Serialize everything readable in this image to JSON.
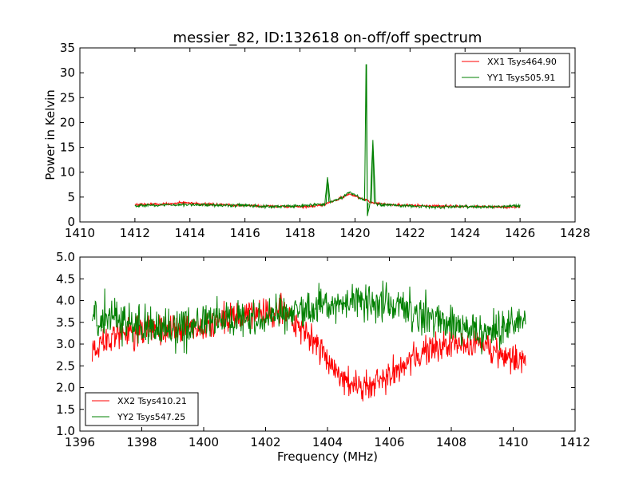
{
  "chart_data": [
    {
      "type": "line",
      "title": "messier_82, ID:132618 on-off/off spectrum",
      "xlabel": "",
      "ylabel": "Power in Kelvin",
      "xlim": [
        1410,
        1428
      ],
      "ylim": [
        0,
        35
      ],
      "xticks": [
        1410,
        1412,
        1414,
        1416,
        1418,
        1420,
        1422,
        1424,
        1426,
        1428
      ],
      "yticks": [
        0,
        5,
        10,
        15,
        20,
        25,
        30,
        35
      ],
      "legend_position": "top-right",
      "series": [
        {
          "name": "XX1 Tsys464.90",
          "color": "#ff0000",
          "points": [
            [
              1412,
              3.5
            ],
            [
              1413,
              3.6
            ],
            [
              1413.8,
              3.9
            ],
            [
              1414.5,
              3.6
            ],
            [
              1415.5,
              3.4
            ],
            [
              1416.5,
              3.2
            ],
            [
              1417.5,
              3.1
            ],
            [
              1418.2,
              3.0
            ],
            [
              1418.8,
              3.4
            ],
            [
              1419.3,
              4.3
            ],
            [
              1419.8,
              5.6
            ],
            [
              1420.1,
              5.0
            ],
            [
              1420.4,
              4.5
            ],
            [
              1420.6,
              3.9
            ],
            [
              1421,
              3.6
            ],
            [
              1422,
              3.3
            ],
            [
              1423,
              3.2
            ],
            [
              1424,
              3.1
            ],
            [
              1425,
              3.0
            ],
            [
              1426,
              3.0
            ]
          ]
        },
        {
          "name": "YY1 Tsys505.91",
          "color": "#008000",
          "points": [
            [
              1412,
              3.3
            ],
            [
              1413,
              3.4
            ],
            [
              1414,
              3.5
            ],
            [
              1415,
              3.4
            ],
            [
              1416,
              3.3
            ],
            [
              1417,
              3.1
            ],
            [
              1418,
              3.2
            ],
            [
              1418.9,
              3.6
            ],
            [
              1419.0,
              9.0
            ],
            [
              1419.1,
              4.0
            ],
            [
              1419.5,
              4.8
            ],
            [
              1419.8,
              6.0
            ],
            [
              1420.1,
              5.1
            ],
            [
              1420.35,
              4.2
            ],
            [
              1420.4,
              31.7
            ],
            [
              1420.45,
              1.2
            ],
            [
              1420.55,
              3.8
            ],
            [
              1420.65,
              16.5
            ],
            [
              1420.75,
              3.6
            ],
            [
              1421,
              3.5
            ],
            [
              1422,
              3.2
            ],
            [
              1423,
              3.0
            ],
            [
              1424,
              3.1
            ],
            [
              1425,
              3.0
            ],
            [
              1426,
              3.3
            ]
          ]
        }
      ]
    },
    {
      "type": "line",
      "title": "",
      "xlabel": "Frequency (MHz)",
      "ylabel": "",
      "xlim": [
        1396,
        1412
      ],
      "ylim": [
        1.0,
        5.0
      ],
      "xticks": [
        1396,
        1398,
        1400,
        1402,
        1404,
        1406,
        1408,
        1410,
        1412
      ],
      "yticks": [
        1.0,
        1.5,
        2.0,
        2.5,
        3.0,
        3.5,
        4.0,
        4.5,
        5.0
      ],
      "legend_position": "bottom-left",
      "series": [
        {
          "name": "XX2 Tsys410.21",
          "color": "#ff0000",
          "points": [
            [
              1396.4,
              2.9
            ],
            [
              1397,
              3.2
            ],
            [
              1398,
              3.3
            ],
            [
              1399,
              3.3
            ],
            [
              1400,
              3.4
            ],
            [
              1401,
              3.6
            ],
            [
              1402,
              3.7
            ],
            [
              1402.6,
              3.8
            ],
            [
              1403,
              3.4
            ],
            [
              1403.6,
              3.1
            ],
            [
              1404,
              2.6
            ],
            [
              1404.5,
              2.2
            ],
            [
              1405,
              2.0
            ],
            [
              1405.5,
              2.1
            ],
            [
              1406,
              2.3
            ],
            [
              1406.5,
              2.5
            ],
            [
              1407,
              2.7
            ],
            [
              1407.5,
              2.9
            ],
            [
              1408,
              3.0
            ],
            [
              1408.5,
              3.0
            ],
            [
              1409,
              2.95
            ],
            [
              1409.5,
              2.8
            ],
            [
              1410,
              2.7
            ],
            [
              1410.4,
              2.6
            ]
          ]
        },
        {
          "name": "YY2 Tsys547.25",
          "color": "#008000",
          "points": [
            [
              1396.4,
              3.6
            ],
            [
              1397,
              3.7
            ],
            [
              1397.5,
              3.5
            ],
            [
              1398,
              3.4
            ],
            [
              1398.5,
              3.3
            ],
            [
              1399,
              3.3
            ],
            [
              1399.5,
              3.4
            ],
            [
              1400,
              3.5
            ],
            [
              1400.5,
              3.55
            ],
            [
              1401,
              3.6
            ],
            [
              1401.5,
              3.6
            ],
            [
              1402,
              3.7
            ],
            [
              1402.5,
              3.7
            ],
            [
              1403,
              3.75
            ],
            [
              1403.5,
              3.8
            ],
            [
              1404,
              3.9
            ],
            [
              1404.5,
              3.95
            ],
            [
              1405,
              4.0
            ],
            [
              1405.5,
              4.0
            ],
            [
              1406,
              3.9
            ],
            [
              1406.5,
              3.8
            ],
            [
              1407,
              3.7
            ],
            [
              1407.5,
              3.6
            ],
            [
              1408,
              3.5
            ],
            [
              1408.5,
              3.3
            ],
            [
              1409,
              3.2
            ],
            [
              1409.5,
              3.3
            ],
            [
              1410,
              3.5
            ],
            [
              1410.4,
              3.6
            ]
          ]
        }
      ]
    }
  ]
}
